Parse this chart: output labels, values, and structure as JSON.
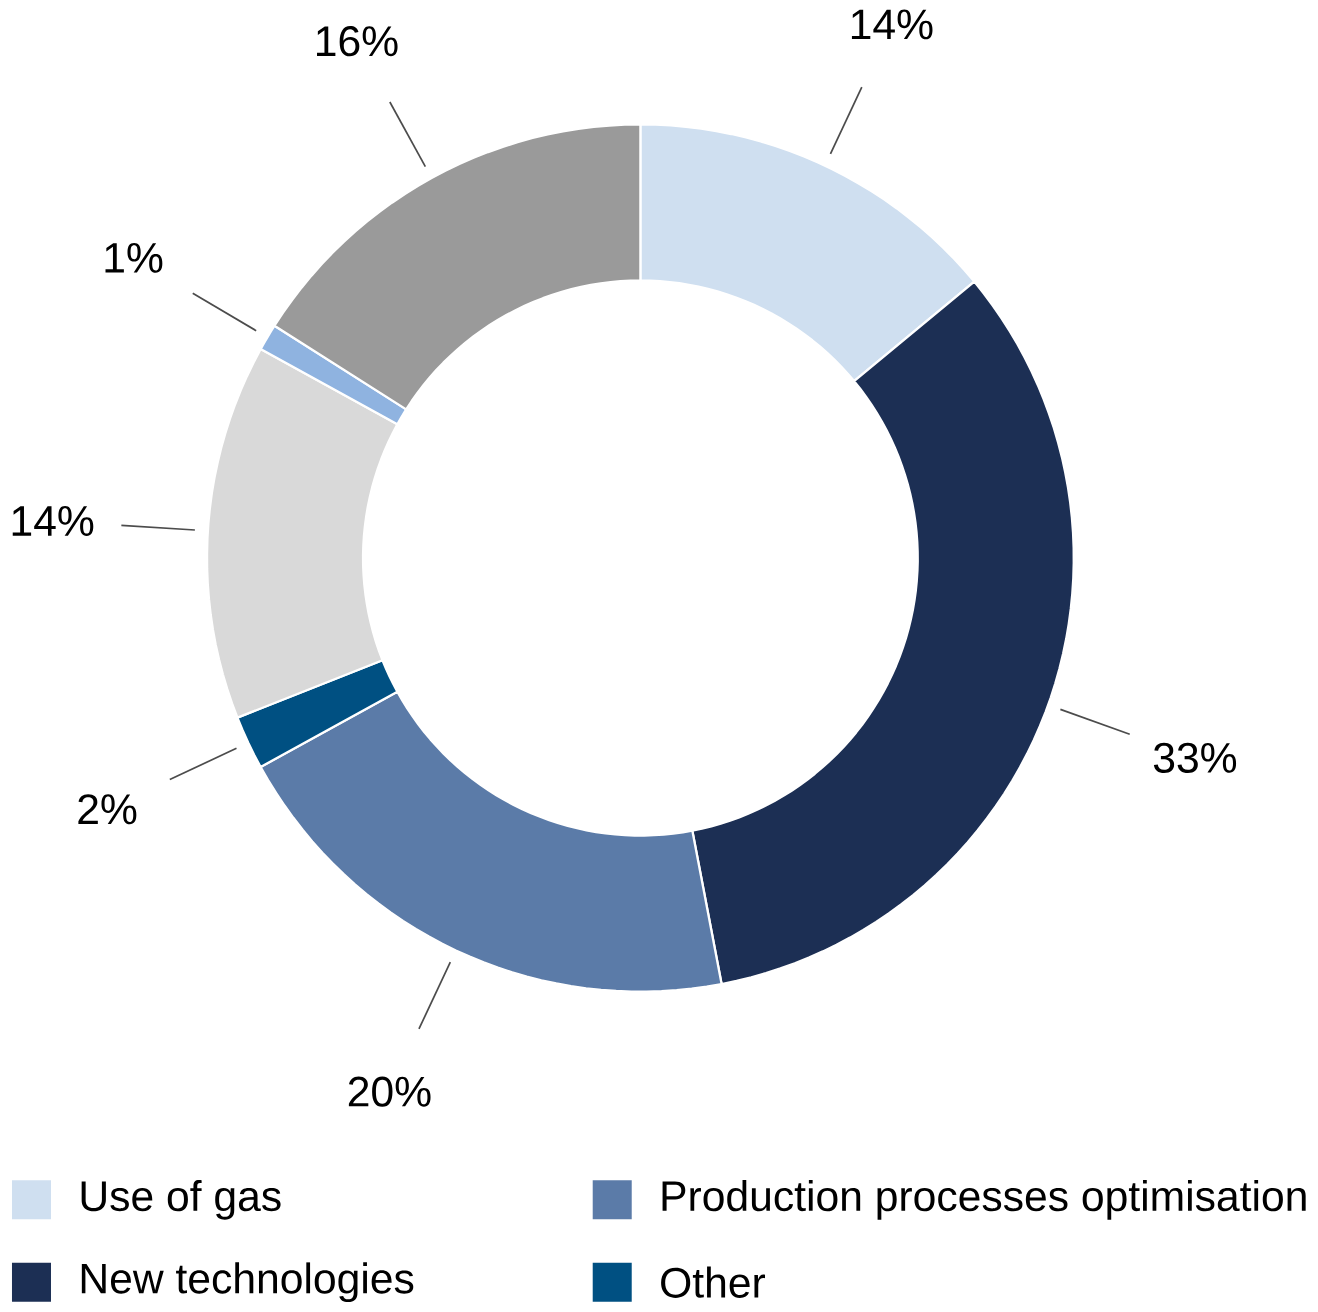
{
  "chart_data": {
    "type": "donut",
    "categories": [
      "Use of gas",
      "New technologies",
      "Production processes optimisation",
      "Other",
      null,
      null,
      null
    ],
    "values": [
      14,
      33,
      20,
      2,
      14,
      1,
      16
    ],
    "value_labels": [
      "14%",
      "33%",
      "20%",
      "2%",
      "14%",
      "1%",
      "16%"
    ],
    "colors": [
      "#cfdff0",
      "#1c2f54",
      "#5b7ba8",
      "#005082",
      "#d9d9d9",
      "#8fb3e0",
      "#9a9a9a"
    ],
    "legend": "bottom"
  }
}
